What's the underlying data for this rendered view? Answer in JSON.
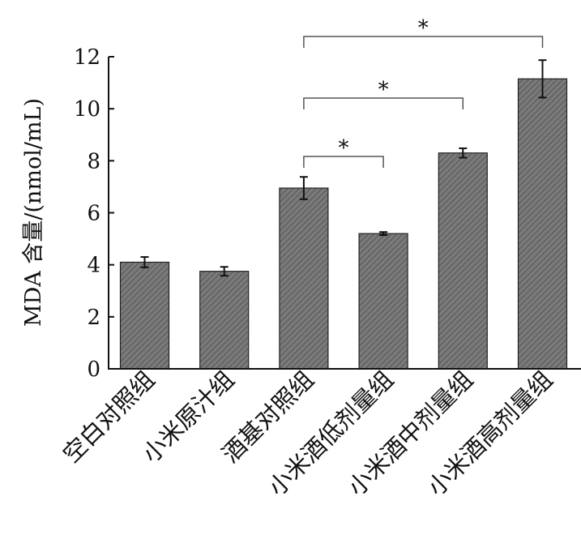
{
  "chart_data": {
    "type": "bar",
    "title": "",
    "xlabel": "",
    "ylabel": "MDA 含量/(nmol/mL)",
    "ylim": [
      0,
      12
    ],
    "yticks": [
      "0",
      "2",
      "4",
      "6",
      "8",
      "10",
      "12"
    ],
    "categories": [
      "空白对照组",
      "小米原汁组",
      "酒基对照组",
      "小米酒低剂量组",
      "小米酒中剂量组",
      "小米酒高剂量组"
    ],
    "values": [
      4.1,
      3.75,
      6.95,
      5.2,
      8.3,
      11.15
    ],
    "errors": [
      0.2,
      0.17,
      0.43,
      0.06,
      0.18,
      0.72
    ],
    "bar_color": "#777777",
    "significance": [
      {
        "from": 2,
        "to": 3,
        "label": "*"
      },
      {
        "from": 2,
        "to": 4,
        "label": "*"
      },
      {
        "from": 2,
        "to": 5,
        "label": "*"
      }
    ]
  }
}
